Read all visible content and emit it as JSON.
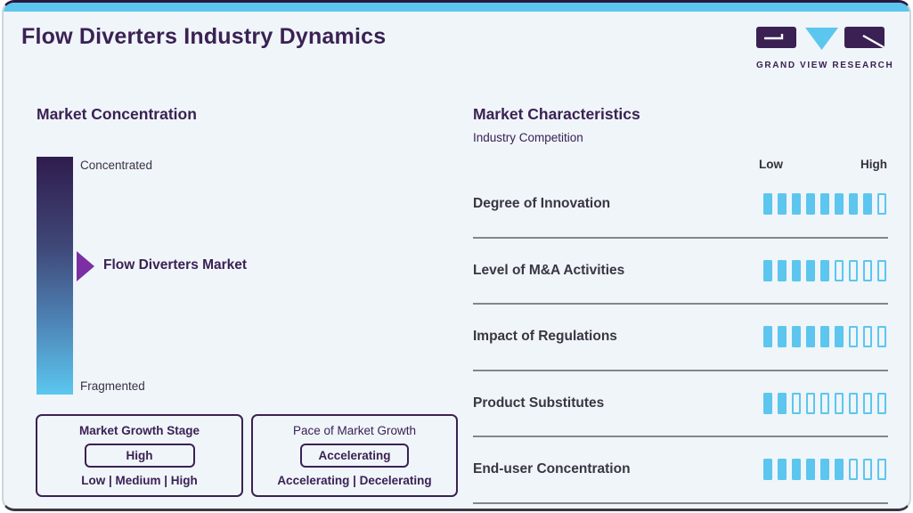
{
  "header": {
    "title": "Flow Diverters Industry Dynamics",
    "logo_text": "GRAND VIEW RESEARCH"
  },
  "market_concentration": {
    "heading": "Market Concentration",
    "scale_top_label": "Concentrated",
    "scale_bottom_label": "Fragmented",
    "pointer_label": "Flow Diverters Market"
  },
  "growth_boxes": [
    {
      "title": "Market Growth Stage",
      "value": "High",
      "options": "Low | Medium | High"
    },
    {
      "title": "Pace of Market Growth",
      "value": "Accelerating",
      "options": "Accelerating | Decelerating"
    }
  ],
  "market_characteristics": {
    "heading": "Market Characteristics",
    "subheading": "Industry Competition",
    "scale_low_label": "Low",
    "scale_high_label": "High",
    "total_segments": 9,
    "rows": [
      {
        "label": "Degree of Innovation",
        "filled": 8
      },
      {
        "label": "Level of M&A Activities",
        "filled": 5
      },
      {
        "label": "Impact of Regulations",
        "filled": 6
      },
      {
        "label": "Product Substitutes",
        "filled": 2
      },
      {
        "label": "End-user Concentration",
        "filled": 6
      }
    ]
  },
  "colors": {
    "accent_blue": "#5cc6ee",
    "brand_purple": "#3b2153",
    "arrow_purple": "#7b2fa2",
    "label_dark": "#3a3542",
    "separator_gray": "#85858d",
    "card_background": "#eff5f9",
    "gradient_top": "#301c4e",
    "gradient_bottom": "#5bc7ef"
  }
}
